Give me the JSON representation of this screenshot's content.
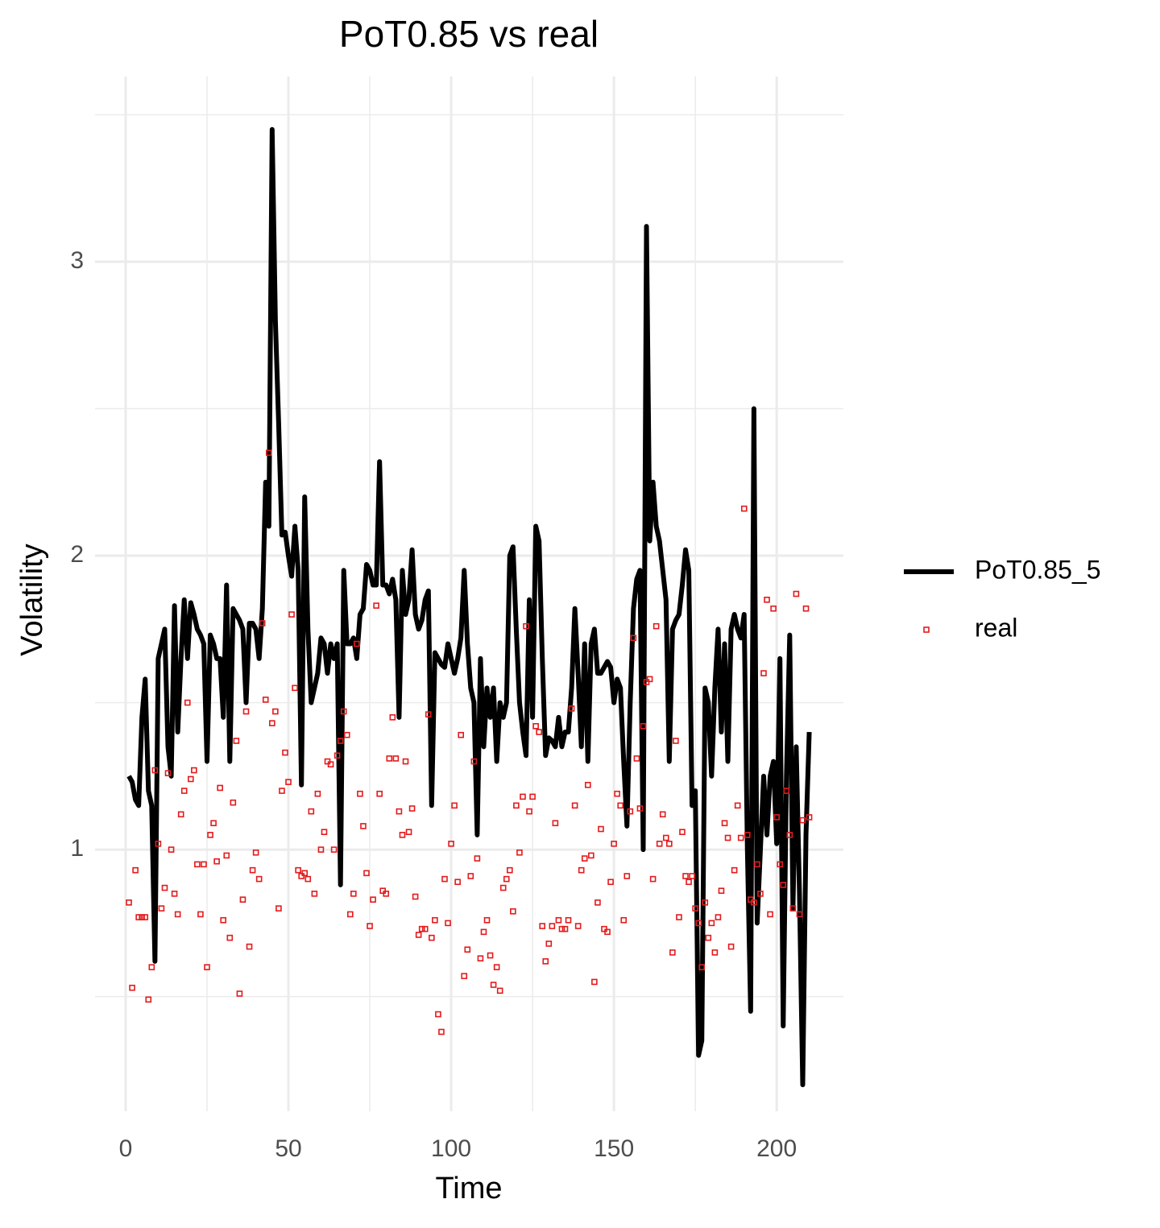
{
  "chart_data": {
    "type": "line",
    "title": "PoT0.85  vs  real",
    "x_label": "Time",
    "y_label": "Volatility",
    "x": [
      1,
      2,
      3,
      4,
      5,
      6,
      7,
      8,
      9,
      10,
      11,
      12,
      13,
      14,
      15,
      16,
      17,
      18,
      19,
      20,
      21,
      22,
      23,
      24,
      25,
      26,
      27,
      28,
      29,
      30,
      31,
      32,
      33,
      34,
      35,
      36,
      37,
      38,
      39,
      40,
      41,
      42,
      43,
      44,
      45,
      46,
      47,
      48,
      49,
      50,
      51,
      52,
      53,
      54,
      55,
      56,
      57,
      58,
      59,
      60,
      61,
      62,
      63,
      64,
      65,
      66,
      67,
      68,
      69,
      70,
      71,
      72,
      73,
      74,
      75,
      76,
      77,
      78,
      79,
      80,
      81,
      82,
      83,
      84,
      85,
      86,
      87,
      88,
      89,
      90,
      91,
      92,
      93,
      94,
      95,
      96,
      97,
      98,
      99,
      100,
      101,
      102,
      103,
      104,
      105,
      106,
      107,
      108,
      109,
      110,
      111,
      112,
      113,
      114,
      115,
      116,
      117,
      118,
      119,
      120,
      121,
      122,
      123,
      124,
      125,
      126,
      127,
      128,
      129,
      130,
      131,
      132,
      133,
      134,
      135,
      136,
      137,
      138,
      139,
      140,
      141,
      142,
      143,
      144,
      145,
      146,
      147,
      148,
      149,
      150,
      151,
      152,
      153,
      154,
      155,
      156,
      157,
      158,
      159,
      160,
      161,
      162,
      163,
      164,
      165,
      166,
      167,
      168,
      169,
      170,
      171,
      172,
      173,
      174,
      175,
      176,
      177,
      178,
      179,
      180,
      181,
      182,
      183,
      184,
      185,
      186,
      187,
      188,
      189,
      190,
      191,
      192,
      193,
      194,
      195,
      196,
      197,
      198,
      199,
      200,
      201,
      202,
      203,
      204,
      205,
      206,
      207,
      208,
      209,
      210
    ],
    "series": [
      {
        "name": "PoT0.85_5",
        "type": "line",
        "color": "#000000",
        "values": [
          1.25,
          1.23,
          1.17,
          1.15,
          1.45,
          1.58,
          1.2,
          1.15,
          0.62,
          1.65,
          1.7,
          1.75,
          1.35,
          1.25,
          1.83,
          1.4,
          1.65,
          1.85,
          1.65,
          1.84,
          1.8,
          1.75,
          1.73,
          1.7,
          1.3,
          1.73,
          1.7,
          1.65,
          1.65,
          1.45,
          1.9,
          1.3,
          1.82,
          1.8,
          1.78,
          1.75,
          1.5,
          1.77,
          1.77,
          1.75,
          1.65,
          1.82,
          2.25,
          2.1,
          3.45,
          2.8,
          2.45,
          2.07,
          2.08,
          2.0,
          1.93,
          2.1,
          1.95,
          1.22,
          2.2,
          1.75,
          1.5,
          1.55,
          1.6,
          1.72,
          1.7,
          1.6,
          1.7,
          1.65,
          1.7,
          0.88,
          1.95,
          1.7,
          1.7,
          1.72,
          1.65,
          1.8,
          1.82,
          1.97,
          1.95,
          1.9,
          1.9,
          2.32,
          1.9,
          1.9,
          1.87,
          1.92,
          1.85,
          1.45,
          1.95,
          1.8,
          1.85,
          2.02,
          1.8,
          1.75,
          1.78,
          1.85,
          1.88,
          1.15,
          1.67,
          1.65,
          1.63,
          1.62,
          1.7,
          1.65,
          1.6,
          1.65,
          1.72,
          1.95,
          1.7,
          1.55,
          1.5,
          1.05,
          1.65,
          1.35,
          1.55,
          1.45,
          1.55,
          1.3,
          1.5,
          1.45,
          1.5,
          2.0,
          2.03,
          1.75,
          1.5,
          1.4,
          1.32,
          1.85,
          1.45,
          2.1,
          2.05,
          1.65,
          1.32,
          1.38,
          1.37,
          1.35,
          1.45,
          1.35,
          1.4,
          1.4,
          1.55,
          1.82,
          1.6,
          1.35,
          1.7,
          1.3,
          1.7,
          1.75,
          1.6,
          1.6,
          1.62,
          1.64,
          1.62,
          1.5,
          1.58,
          1.55,
          1.3,
          1.08,
          1.5,
          1.82,
          1.92,
          1.95,
          1.0,
          3.12,
          2.05,
          2.25,
          2.1,
          2.05,
          1.95,
          1.85,
          1.3,
          1.75,
          1.78,
          1.8,
          1.9,
          2.02,
          1.95,
          1.15,
          1.2,
          0.3,
          0.35,
          1.55,
          1.5,
          1.25,
          1.55,
          1.75,
          1.4,
          1.7,
          1.3,
          1.75,
          1.8,
          1.75,
          1.72,
          1.8,
          1.0,
          0.45,
          2.5,
          0.75,
          1.0,
          1.25,
          1.05,
          1.25,
          1.3,
          1.02,
          1.65,
          0.4,
          1.25,
          1.73,
          0.8,
          1.35,
          0.85,
          0.2,
          1.05,
          1.4
        ]
      },
      {
        "name": "real",
        "type": "scatter",
        "color": "#e41a1c",
        "values": [
          0.82,
          0.53,
          0.93,
          0.77,
          0.77,
          0.77,
          0.49,
          0.6,
          1.27,
          1.02,
          0.8,
          0.87,
          1.26,
          1.0,
          0.85,
          0.78,
          1.12,
          1.2,
          1.5,
          1.24,
          1.27,
          0.95,
          0.78,
          0.95,
          0.6,
          1.05,
          1.09,
          0.96,
          1.21,
          0.76,
          0.98,
          0.7,
          1.16,
          1.37,
          0.51,
          0.83,
          1.47,
          0.67,
          0.93,
          0.99,
          0.9,
          1.77,
          1.51,
          2.35,
          1.43,
          1.47,
          0.8,
          1.2,
          1.33,
          1.23,
          1.8,
          1.55,
          0.93,
          0.91,
          0.92,
          0.9,
          1.13,
          0.85,
          1.19,
          1.0,
          1.06,
          1.3,
          1.29,
          1.0,
          1.32,
          1.37,
          1.47,
          1.39,
          0.78,
          0.85,
          1.7,
          1.19,
          1.08,
          0.92,
          0.74,
          0.83,
          1.83,
          1.19,
          0.86,
          0.85,
          1.31,
          1.45,
          1.31,
          1.13,
          1.05,
          1.3,
          1.06,
          1.14,
          0.84,
          0.71,
          0.73,
          0.73,
          1.46,
          0.7,
          0.76,
          0.44,
          0.38,
          0.9,
          0.75,
          1.02,
          1.15,
          0.89,
          1.39,
          0.57,
          0.66,
          0.91,
          1.3,
          0.97,
          0.63,
          0.72,
          0.76,
          0.64,
          0.54,
          0.6,
          0.52,
          0.87,
          0.9,
          0.93,
          0.79,
          1.15,
          0.99,
          1.18,
          1.76,
          1.13,
          1.18,
          1.42,
          1.4,
          0.74,
          0.62,
          0.68,
          0.74,
          1.09,
          0.76,
          0.73,
          0.73,
          0.76,
          1.48,
          1.15,
          0.74,
          0.93,
          0.97,
          1.22,
          0.98,
          0.55,
          0.82,
          1.07,
          0.73,
          0.72,
          0.89,
          1.02,
          1.19,
          1.15,
          0.76,
          0.91,
          1.13,
          1.72,
          1.31,
          1.14,
          1.42,
          1.57,
          1.58,
          0.9,
          1.76,
          1.02,
          1.12,
          1.04,
          1.02,
          0.65,
          1.37,
          0.77,
          1.06,
          0.91,
          0.89,
          0.91,
          0.8,
          0.75,
          0.6,
          0.82,
          0.7,
          0.75,
          0.65,
          0.77,
          0.86,
          1.09,
          1.04,
          0.67,
          0.93,
          1.15,
          1.04,
          2.16,
          1.05,
          0.83,
          0.82,
          0.95,
          0.85,
          1.6,
          1.85,
          0.78,
          1.82,
          1.11,
          0.95,
          0.88,
          1.2,
          1.05,
          0.8,
          1.87,
          0.78,
          1.1,
          1.82,
          1.11
        ]
      }
    ],
    "xlim": [
      -9.4,
      220.5
    ],
    "ylim": [
      0.11,
      3.63
    ],
    "xticks": [
      0,
      50,
      100,
      150,
      200
    ],
    "yticks": [
      1,
      2,
      3
    ],
    "xticks_minor": [
      25,
      75,
      125,
      175
    ],
    "yticks_minor": [
      0.5,
      1.5,
      2.5,
      3.5
    ],
    "grid": true,
    "legend": "right"
  }
}
